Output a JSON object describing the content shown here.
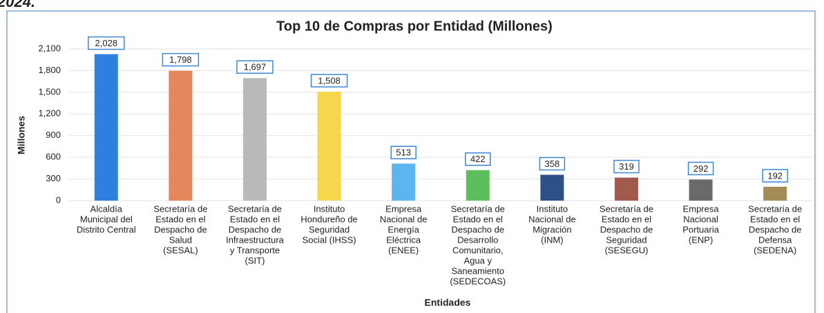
{
  "header_text": "2024.",
  "chart_data": {
    "type": "bar",
    "title": "Top 10 de Compras por Entidad (Millones)",
    "y_label": "Millones",
    "x_label": "Entidades",
    "categories": [
      [
        "Alcaldía",
        "Municipal del",
        "Distrito Central"
      ],
      [
        "Secretaría de",
        "Estado en el",
        "Despacho de",
        "Salud",
        "(SESAL)"
      ],
      [
        "Secretaría de",
        "Estado en el",
        "Despacho de",
        "Infraestructura",
        "y Transporte",
        "(SIT)"
      ],
      [
        "Instituto",
        "Hondureño de",
        "Seguridad",
        "Social (IHSS)"
      ],
      [
        "Empresa",
        "Nacional de",
        "Energía",
        "Eléctrica",
        "(ENEE)"
      ],
      [
        "Secretaría de",
        "Estado en el",
        "Despacho de",
        "Desarrollo",
        "Comunitario,",
        "Agua y",
        "Saneamiento",
        "(SEDECOAS)"
      ],
      [
        "Instituto",
        "Nacional de",
        "Migración",
        "(INM)"
      ],
      [
        "Secretaría de",
        "Estado en el",
        "Despacho de",
        "Seguridad",
        "(SESEGU)"
      ],
      [
        "Empresa",
        "Nacional",
        "Portuaria",
        "(ENP)"
      ],
      [
        "Secretaría de",
        "Estado en el",
        "Despacho de",
        "Defensa",
        "(SEDENA)"
      ]
    ],
    "values": [
      2028,
      1798,
      1697,
      1508,
      513,
      422,
      358,
      319,
      292,
      192
    ],
    "value_labels": [
      "2,028",
      "1,798",
      "1,697",
      "1,508",
      "513",
      "422",
      "358",
      "319",
      "292",
      "192"
    ],
    "colors": [
      "#2f7fdf",
      "#e4875c",
      "#b9b9b9",
      "#f6d64a",
      "#5bb6ef",
      "#5cbf5c",
      "#2d5089",
      "#a25a4c",
      "#6a6a6a",
      "#a38c55"
    ],
    "ylim": [
      0,
      2100
    ],
    "yticks": [
      0,
      300,
      600,
      900,
      {
        "value": 1200,
        "label": "1,200"
      },
      {
        "value": 1500,
        "label": "1,500"
      },
      {
        "value": 1800,
        "label": "1,800"
      },
      {
        "value": 2100,
        "label": "2,100"
      }
    ],
    "grid": true
  }
}
